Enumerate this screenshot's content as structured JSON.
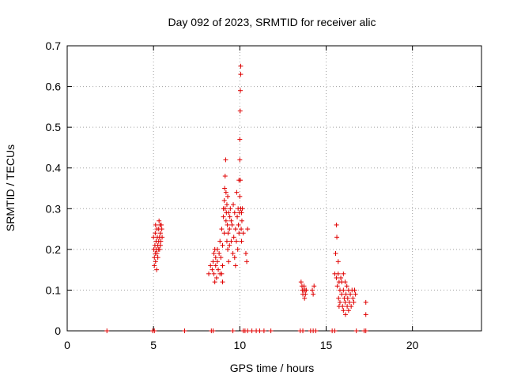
{
  "chart_data": {
    "type": "scatter",
    "title": "Day 092 of 2023, SRMTID for receiver alic",
    "xlabel": "GPS time / hours",
    "ylabel": "SRMTID / TECUs",
    "xlim": [
      0,
      24
    ],
    "ylim": [
      0,
      0.7
    ],
    "xticks": [
      0,
      5,
      10,
      15,
      20
    ],
    "yticks": [
      0,
      0.1,
      0.2,
      0.3,
      0.4,
      0.5,
      0.6,
      0.7
    ],
    "grid": true,
    "marker": "+",
    "color": "#e00000",
    "series": [
      {
        "name": "SRMTID",
        "points": [
          [
            2.3,
            0
          ],
          [
            4.95,
            0
          ],
          [
            5.05,
            0
          ],
          [
            6.8,
            0
          ],
          [
            8.35,
            0
          ],
          [
            8.45,
            0
          ],
          [
            9.6,
            0
          ],
          [
            10.2,
            0
          ],
          [
            10.3,
            0
          ],
          [
            10.45,
            0
          ],
          [
            10.7,
            0
          ],
          [
            10.95,
            0
          ],
          [
            11.15,
            0
          ],
          [
            11.4,
            0
          ],
          [
            11.8,
            0
          ],
          [
            13.5,
            0
          ],
          [
            13.65,
            0
          ],
          [
            14.1,
            0
          ],
          [
            14.25,
            0
          ],
          [
            14.4,
            0
          ],
          [
            15.35,
            0
          ],
          [
            15.5,
            0
          ],
          [
            16.75,
            0
          ],
          [
            17.2,
            0
          ],
          [
            17.3,
            0
          ],
          [
            5.0,
            0.23
          ],
          [
            5.02,
            0.2
          ],
          [
            5.05,
            0.18
          ],
          [
            5.05,
            0.16
          ],
          [
            5.08,
            0.21
          ],
          [
            5.1,
            0.24
          ],
          [
            5.1,
            0.19
          ],
          [
            5.12,
            0.17
          ],
          [
            5.15,
            0.22
          ],
          [
            5.15,
            0.2
          ],
          [
            5.18,
            0.15
          ],
          [
            5.2,
            0.19
          ],
          [
            5.22,
            0.23
          ],
          [
            5.25,
            0.21
          ],
          [
            5.25,
            0.18
          ],
          [
            5.28,
            0.2
          ],
          [
            5.3,
            0.25
          ],
          [
            5.3,
            0.22
          ],
          [
            5.32,
            0.27
          ],
          [
            5.35,
            0.23
          ],
          [
            5.38,
            0.26
          ],
          [
            5.4,
            0.24
          ],
          [
            5.42,
            0.22
          ],
          [
            5.45,
            0.26
          ],
          [
            5.48,
            0.25
          ],
          [
            5.5,
            0.23
          ],
          [
            5.12,
            0.26
          ],
          [
            5.2,
            0.25
          ],
          [
            5.35,
            0.2
          ],
          [
            5.4,
            0.21
          ],
          [
            8.4,
            0.15
          ],
          [
            8.45,
            0.17
          ],
          [
            8.5,
            0.14
          ],
          [
            8.5,
            0.19
          ],
          [
            8.55,
            0.12
          ],
          [
            8.6,
            0.18
          ],
          [
            8.6,
            0.16
          ],
          [
            8.65,
            0.13
          ],
          [
            8.7,
            0.2
          ],
          [
            8.7,
            0.17
          ],
          [
            8.75,
            0.15
          ],
          [
            8.8,
            0.19
          ],
          [
            8.85,
            0.14
          ],
          [
            8.85,
            0.22
          ],
          [
            8.9,
            0.18
          ],
          [
            8.95,
            0.25
          ],
          [
            9.0,
            0.21
          ],
          [
            9.0,
            0.16
          ],
          [
            9.0,
            0.12
          ],
          [
            9.05,
            0.28
          ],
          [
            9.05,
            0.3
          ],
          [
            9.1,
            0.32
          ],
          [
            9.1,
            0.24
          ],
          [
            9.12,
            0.35
          ],
          [
            9.15,
            0.3
          ],
          [
            9.15,
            0.38
          ],
          [
            9.18,
            0.42
          ],
          [
            9.2,
            0.34
          ],
          [
            9.2,
            0.27
          ],
          [
            9.22,
            0.29
          ],
          [
            9.25,
            0.31
          ],
          [
            9.25,
            0.22
          ],
          [
            9.28,
            0.26
          ],
          [
            9.3,
            0.33
          ],
          [
            9.3,
            0.2
          ],
          [
            9.32,
            0.24
          ],
          [
            9.35,
            0.29
          ],
          [
            9.35,
            0.17
          ],
          [
            9.4,
            0.25
          ],
          [
            9.4,
            0.21
          ],
          [
            9.42,
            0.28
          ],
          [
            9.45,
            0.3
          ],
          [
            9.5,
            0.27
          ],
          [
            9.5,
            0.22
          ],
          [
            9.55,
            0.26
          ],
          [
            9.6,
            0.19
          ],
          [
            9.62,
            0.31
          ],
          [
            9.65,
            0.23
          ],
          [
            9.7,
            0.29
          ],
          [
            9.7,
            0.18
          ],
          [
            9.75,
            0.25
          ],
          [
            9.75,
            0.16
          ],
          [
            9.8,
            0.22
          ],
          [
            9.82,
            0.34
          ],
          [
            9.85,
            0.28
          ],
          [
            9.88,
            0.2
          ],
          [
            9.9,
            0.3
          ],
          [
            9.92,
            0.26
          ],
          [
            9.95,
            0.24
          ],
          [
            9.95,
            0.37
          ],
          [
            9.98,
            0.29
          ],
          [
            10.0,
            0.42
          ],
          [
            10.0,
            0.47
          ],
          [
            10.02,
            0.54
          ],
          [
            10.03,
            0.59
          ],
          [
            10.05,
            0.63
          ],
          [
            10.05,
            0.65
          ],
          [
            10.05,
            0.3
          ],
          [
            10.08,
            0.25
          ],
          [
            10.1,
            0.29
          ],
          [
            10.1,
            0.22
          ],
          [
            10.12,
            0.27
          ],
          [
            10.15,
            0.3
          ],
          [
            10.2,
            0.24
          ],
          [
            10.35,
            0.19
          ],
          [
            10.4,
            0.17
          ],
          [
            10.45,
            0.25
          ],
          [
            8.2,
            0.14
          ],
          [
            8.3,
            0.16
          ],
          [
            8.55,
            0.2
          ],
          [
            8.95,
            0.14
          ],
          [
            10.0,
            0.33
          ],
          [
            10.03,
            0.37
          ],
          [
            13.55,
            0.12
          ],
          [
            13.6,
            0.11
          ],
          [
            13.62,
            0.1
          ],
          [
            13.65,
            0.09
          ],
          [
            13.7,
            0.1
          ],
          [
            13.72,
            0.11
          ],
          [
            13.75,
            0.08
          ],
          [
            13.78,
            0.1
          ],
          [
            13.8,
            0.09
          ],
          [
            13.85,
            0.1
          ],
          [
            14.2,
            0.1
          ],
          [
            14.25,
            0.09
          ],
          [
            14.3,
            0.11
          ],
          [
            15.5,
            0.14
          ],
          [
            15.55,
            0.19
          ],
          [
            15.6,
            0.13
          ],
          [
            15.6,
            0.26
          ],
          [
            15.62,
            0.23
          ],
          [
            15.65,
            0.11
          ],
          [
            15.7,
            0.17
          ],
          [
            15.72,
            0.08
          ],
          [
            15.75,
            0.12
          ],
          [
            15.8,
            0.1
          ],
          [
            15.8,
            0.07
          ],
          [
            15.85,
            0.13
          ],
          [
            15.9,
            0.09
          ],
          [
            15.95,
            0.06
          ],
          [
            16.0,
            0.1
          ],
          [
            16.0,
            0.05
          ],
          [
            16.05,
            0.08
          ],
          [
            16.1,
            0.12
          ],
          [
            16.1,
            0.07
          ],
          [
            16.15,
            0.09
          ],
          [
            16.2,
            0.11
          ],
          [
            16.22,
            0.06
          ],
          [
            16.25,
            0.08
          ],
          [
            16.3,
            0.1
          ],
          [
            16.3,
            0.05
          ],
          [
            16.35,
            0.07
          ],
          [
            16.4,
            0.09
          ],
          [
            16.45,
            0.06
          ],
          [
            16.5,
            0.1
          ],
          [
            16.55,
            0.08
          ],
          [
            16.6,
            0.07
          ],
          [
            16.65,
            0.1
          ],
          [
            16.7,
            0.09
          ],
          [
            15.75,
            0.06
          ],
          [
            16.12,
            0.04
          ],
          [
            17.3,
            0.07
          ],
          [
            17.3,
            0.04
          ],
          [
            15.7,
            0.14
          ],
          [
            15.9,
            0.12
          ],
          [
            16.0,
            0.14
          ]
        ]
      }
    ]
  }
}
